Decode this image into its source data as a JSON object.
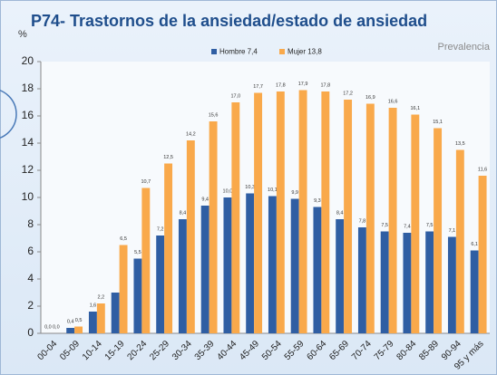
{
  "chart_data": {
    "type": "bar",
    "title": "P74- Trastornos de la ansiedad/estado de ansiedad",
    "subtitle": "Prevalencia",
    "y_label": "%",
    "categories": [
      "00-04",
      "05-09",
      "10-14",
      "15-19",
      "20-24",
      "25-29",
      "30-34",
      "35-39",
      "40-44",
      "45-49",
      "50-54",
      "55-59",
      "60-64",
      "65-69",
      "70-74",
      "75-79",
      "80-84",
      "85-89",
      "90-94",
      "95 y más"
    ],
    "series": [
      {
        "name": "Hombre 7,4",
        "color": "#2f5ea3",
        "values": [
          0.0,
          0.4,
          1.6,
          3.0,
          5.5,
          7.2,
          8.4,
          9.4,
          10.0,
          10.3,
          10.1,
          9.9,
          9.3,
          8.4,
          7.8,
          7.5,
          7.4,
          7.5,
          7.1,
          6.1
        ],
        "value_labels": [
          "0,0",
          "0,4",
          "1,6",
          null,
          "5,5",
          "7,2",
          "8,4",
          "9,4",
          "10,0",
          "10,3",
          "10,1",
          "9,9",
          "9,3",
          "8,4",
          "7,8",
          "7,5",
          "7,4",
          "7,5",
          "7,1",
          "6,1"
        ]
      },
      {
        "name": "Mujer 13,8",
        "color": "#f9a94b",
        "values": [
          0.0,
          0.5,
          2.2,
          6.5,
          10.7,
          12.5,
          14.2,
          15.6,
          17.0,
          17.7,
          17.8,
          17.9,
          17.8,
          17.2,
          16.9,
          16.6,
          16.1,
          15.1,
          13.5,
          11.6
        ],
        "value_labels": [
          "0,0",
          "0,5",
          "2,2",
          "6,5",
          "10,7",
          "12,5",
          "14,2",
          "15,6",
          "17,0",
          "17,7",
          "17,8",
          "17,9",
          "17,8",
          "17,2",
          "16,9",
          "16,6",
          "16,1",
          "15,1",
          "13,5",
          "11,6"
        ]
      }
    ],
    "ylim": [
      0,
      20
    ],
    "yticks": [
      0,
      2,
      4,
      6,
      8,
      10,
      12,
      14,
      16,
      18,
      20
    ],
    "grid": false,
    "legend": "top"
  }
}
